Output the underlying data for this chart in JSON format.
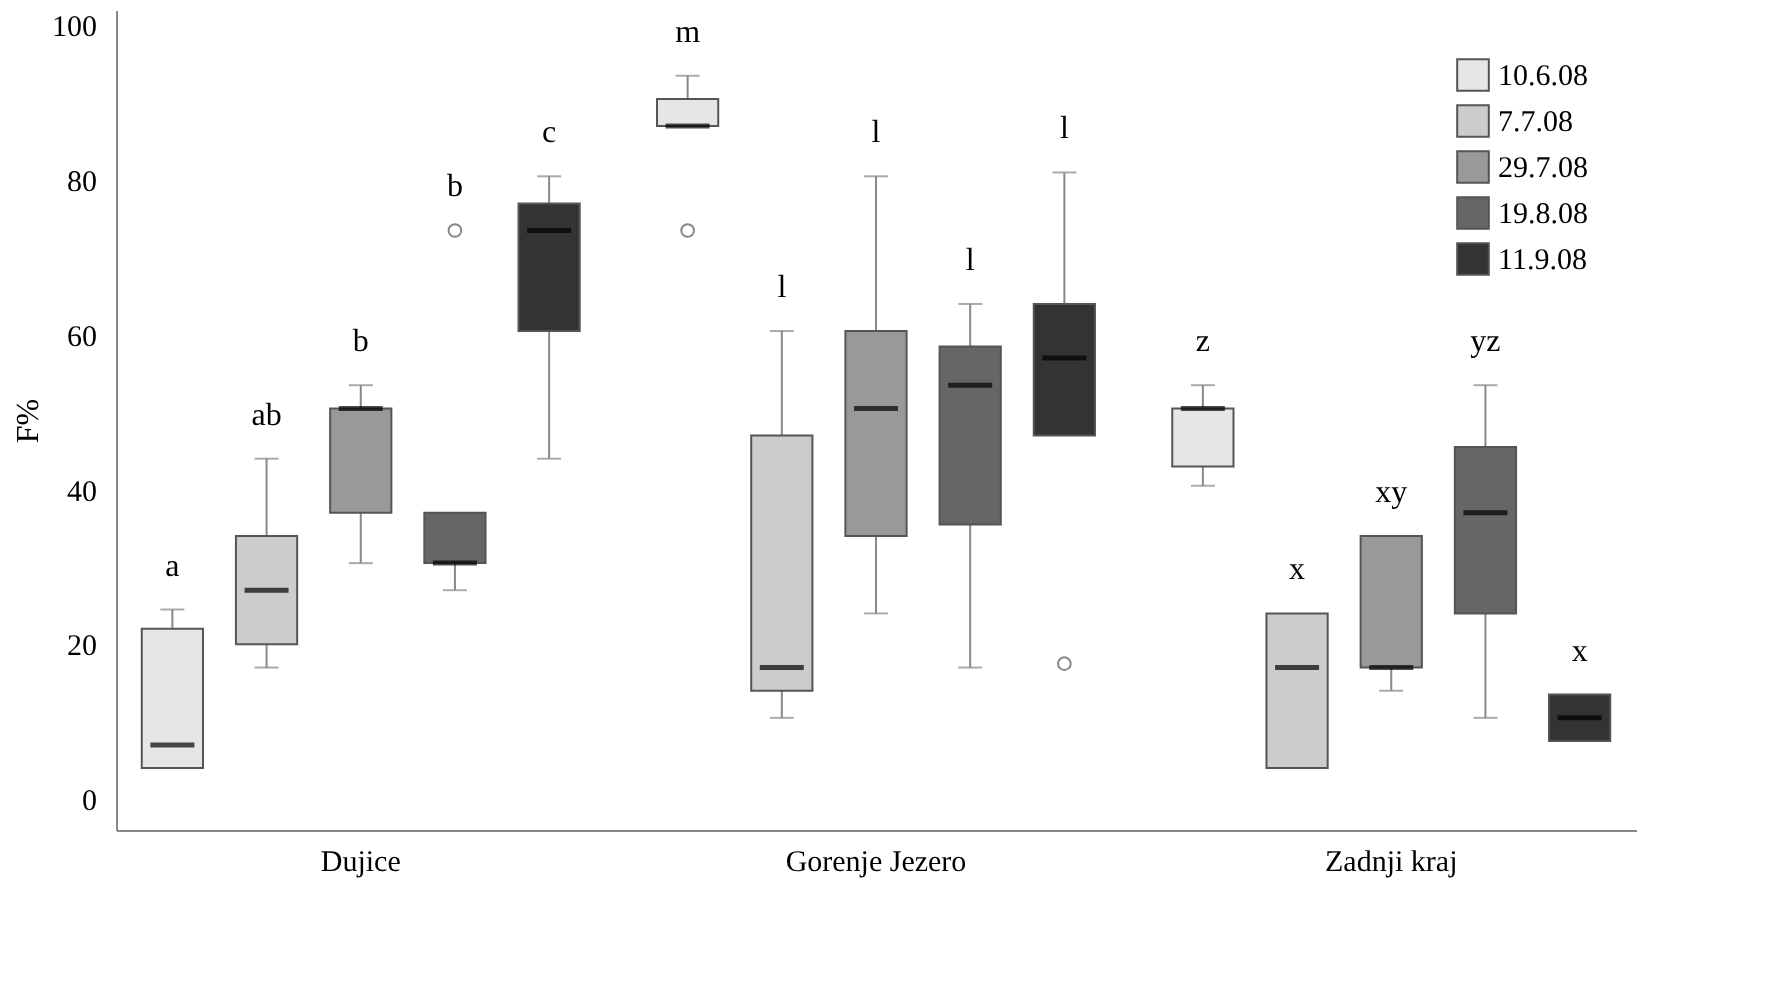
{
  "chart_data": {
    "type": "box",
    "ylabel": "F%",
    "categories": [
      "Dujice",
      "Gorenje Jezero",
      "Zadnji kraj"
    ],
    "ylim": [
      -4,
      102
    ],
    "yticks": [
      0,
      20,
      40,
      60,
      80,
      100
    ],
    "grid": false,
    "legend": "top right",
    "series": [
      {
        "name": "10.6.08",
        "color": "#e6e6e6",
        "boxes": [
          {
            "low": 4,
            "q1": 4,
            "median": 7,
            "q3": 22,
            "high": 24.5
          },
          {
            "low": 87,
            "q1": 87,
            "median": 87,
            "q3": 90.5,
            "high": 93.5,
            "outliers": [
              73.5
            ]
          },
          {
            "low": 40.5,
            "q1": 43,
            "median": 50.5,
            "q3": 50.5,
            "high": 53.5
          }
        ]
      },
      {
        "name": "7.7.08",
        "color": "#cccccc",
        "boxes": [
          {
            "low": 17,
            "q1": 20,
            "median": 27,
            "q3": 34,
            "high": 44
          },
          {
            "low": 10.5,
            "q1": 14,
            "median": 17,
            "q3": 47,
            "high": 60.5
          },
          {
            "low": 4,
            "q1": 4,
            "median": 17,
            "q3": 24,
            "high": 24
          }
        ]
      },
      {
        "name": "29.7.08",
        "color": "#999999",
        "boxes": [
          {
            "low": 30.5,
            "q1": 37,
            "median": 50.5,
            "q3": 50.5,
            "high": 53.5
          },
          {
            "low": 24,
            "q1": 34,
            "median": 50.5,
            "q3": 60.5,
            "high": 80.5
          },
          {
            "low": 14,
            "q1": 17,
            "median": 17,
            "q3": 34,
            "high": 34
          }
        ]
      },
      {
        "name": "19.8.08",
        "color": "#666666",
        "boxes": [
          {
            "low": 27,
            "q1": 30.5,
            "median": 30.5,
            "q3": 37,
            "high": 37,
            "outliers": [
              73.5
            ]
          },
          {
            "low": 17,
            "q1": 35.5,
            "median": 53.5,
            "q3": 58.5,
            "high": 64
          },
          {
            "low": 10.5,
            "q1": 24,
            "median": 37,
            "q3": 45.5,
            "high": 53.5
          }
        ]
      },
      {
        "name": "11.9.08",
        "color": "#333333",
        "boxes": [
          {
            "low": 44,
            "q1": 60.5,
            "median": 73.5,
            "q3": 77,
            "high": 80.5
          },
          {
            "low": 47,
            "q1": 47,
            "median": 57,
            "q3": 64,
            "high": 81,
            "outliers": [
              17.5
            ]
          },
          {
            "low": 7.5,
            "q1": 7.5,
            "median": 10.5,
            "q3": 13.5,
            "high": 13.5
          }
        ]
      }
    ],
    "annotations": [
      "a",
      "ab",
      "b",
      "b",
      "c",
      "m",
      "l",
      "l",
      "l",
      "l",
      "z",
      "x",
      "xy",
      "yz",
      "x"
    ]
  }
}
